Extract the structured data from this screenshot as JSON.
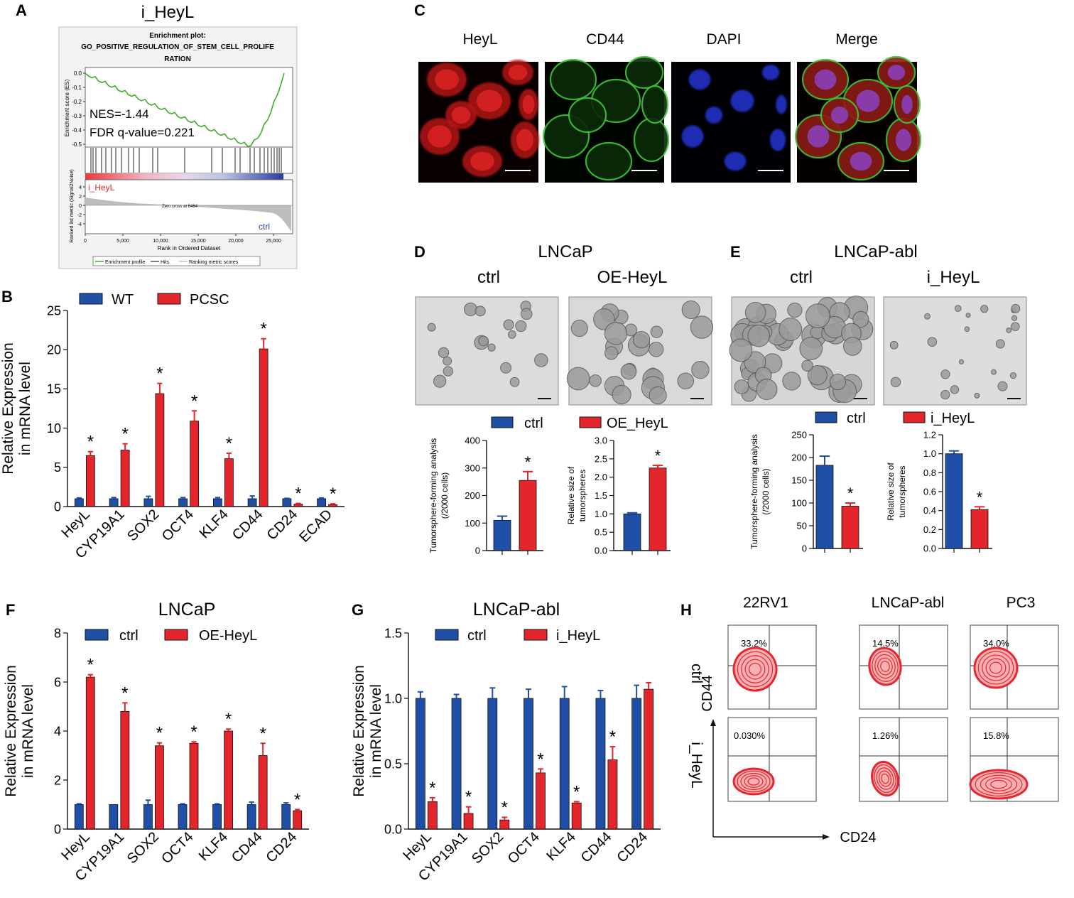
{
  "colors": {
    "blue": "#1f4fa6",
    "red": "#e3262b",
    "green": "#3fae2a",
    "flow": "#e8262d"
  },
  "panel_letters": [
    "A",
    "B",
    "C",
    "D",
    "E",
    "F",
    "G",
    "H"
  ],
  "panelA": {
    "title": "i_HeyL",
    "plot_title_lines": [
      "Enrichment plot:",
      "GO_POSITIVE_REGULATION_OF_STEM_CELL_PROLIFE",
      "RATION"
    ],
    "es_label": "Enrichment score (ES)",
    "es_ticks": [
      "0.0",
      "-0.1",
      "-0.2",
      "-0.3",
      "-0.4",
      "-0.5"
    ],
    "nes": "NES=-1.44",
    "fdr": "FDR q-value=0.221",
    "pos_label": "i_HeyL",
    "neg_label": "ctrl",
    "zero_cross": "Zero cross at 8484",
    "metric_label": "Ranked list metric (Signal2Noise)",
    "metric_ticks": [
      "4",
      "2",
      "0",
      "-2",
      "-4"
    ],
    "x_ticks": [
      "0",
      "5,000",
      "10,000",
      "15,000",
      "20,000",
      "25,000"
    ],
    "xlabel": "Rank in Ordered Dataset",
    "legend": [
      "Enrichment profile",
      "Hits",
      "Ranking metric scores"
    ]
  },
  "panelC": {
    "labels": [
      "HeyL",
      "CD44",
      "DAPI",
      "Merge"
    ]
  },
  "panelD": {
    "title": "LNCaP",
    "labels": [
      "ctrl",
      "OE-HeyL"
    ],
    "legend": [
      "ctrl",
      "OE_HeyL"
    ]
  },
  "panelE": {
    "title": "LNCaP-abl",
    "labels": [
      "ctrl",
      "i_HeyL"
    ],
    "legend": [
      "ctrl",
      "i_HeyL"
    ]
  },
  "panelH": {
    "columns": [
      "22RV1",
      "LNCaP-abl",
      "PC3"
    ],
    "rows": [
      "ctrl",
      "i_HeyL"
    ],
    "percents": [
      [
        "33.2%",
        "14.5%",
        "34.0%"
      ],
      [
        "0.030%",
        "1.26%",
        "15.8%"
      ]
    ],
    "xlabel": "CD24",
    "ylabel": "CD44"
  },
  "chart_data": [
    {
      "id": "B",
      "type": "bar",
      "categories": [
        "HeyL",
        "CYP19A1",
        "SOX2",
        "OCT4",
        "KLF4",
        "CD44",
        "CD24",
        "ECAD"
      ],
      "series": [
        {
          "name": "WT",
          "values": [
            1,
            1,
            1,
            1,
            1,
            1,
            1,
            1
          ],
          "errors": [
            0.1,
            0.15,
            0.3,
            0.15,
            0.15,
            0.35,
            0.05,
            0.1
          ]
        },
        {
          "name": "PCSC",
          "values": [
            6.5,
            7.2,
            14.4,
            10.9,
            6.1,
            20.1,
            0.3,
            0.25
          ],
          "errors": [
            0.5,
            0.8,
            1.3,
            1.3,
            0.7,
            1.3,
            0.1,
            0.1
          ]
        }
      ],
      "sig": [
        "*",
        "*",
        "*",
        "*",
        "*",
        "*",
        "*",
        "*"
      ],
      "ylabel": [
        "Relative Expression",
        "in mRNA level"
      ],
      "ylim": [
        0,
        25
      ],
      "yticks": [
        "0",
        "5",
        "10",
        "15",
        "20",
        "25"
      ]
    },
    {
      "id": "D1",
      "type": "bar",
      "categories": [
        "ctrl",
        "OE_HeyL"
      ],
      "values": [
        110,
        255
      ],
      "errors": [
        15,
        32
      ],
      "sig": "*",
      "ylabel": [
        "Tumorsphere-forming analysis",
        "(/2000 cells)"
      ],
      "ylim": [
        0,
        400
      ],
      "yticks": [
        "0",
        "100",
        "200",
        "300",
        "400"
      ]
    },
    {
      "id": "D2",
      "type": "bar",
      "categories": [
        "ctrl",
        "OE_HeyL"
      ],
      "values": [
        1.0,
        2.25
      ],
      "errors": [
        0.03,
        0.07
      ],
      "sig": "*",
      "ylabel": [
        "Relative size of",
        "tumorspheres"
      ],
      "ylim": [
        0,
        3.0
      ],
      "yticks": [
        "0.0",
        "0.5",
        "1.0",
        "1.5",
        "2.0",
        "2.5",
        "3.0"
      ]
    },
    {
      "id": "E1",
      "type": "bar",
      "categories": [
        "ctrl",
        "i_HeyL"
      ],
      "values": [
        183,
        93
      ],
      "errors": [
        20,
        7
      ],
      "sig": "*",
      "ylabel": [
        "Tumorsphere-forming analysis",
        "(/2000 cells)"
      ],
      "ylim": [
        0,
        250
      ],
      "yticks": [
        "0",
        "50",
        "100",
        "150",
        "200",
        "250"
      ]
    },
    {
      "id": "E2",
      "type": "bar",
      "categories": [
        "ctrl",
        "i_HeyL"
      ],
      "values": [
        1.0,
        0.41
      ],
      "errors": [
        0.03,
        0.03
      ],
      "sig": "*",
      "ylabel": [
        "Relative size of",
        "tumorspheres"
      ],
      "ylim": [
        0,
        1.2
      ],
      "yticks": [
        "0.0",
        "0.2",
        "0.4",
        "0.6",
        "0.8",
        "1.0",
        "1.2"
      ]
    },
    {
      "id": "F",
      "type": "bar",
      "title": "LNCaP",
      "categories": [
        "HeyL",
        "CYP19A1",
        "SOX2",
        "OCT4",
        "KLF4",
        "CD44",
        "CD24"
      ],
      "series": [
        {
          "name": "ctrl",
          "values": [
            1,
            1,
            1,
            1,
            1,
            1,
            1
          ],
          "errors": [
            0.03,
            0,
            0.18,
            0.03,
            0.03,
            0.1,
            0.07
          ]
        },
        {
          "name": "OE-HeyL",
          "values": [
            6.2,
            4.8,
            3.4,
            3.5,
            4.0,
            3.0,
            0.75
          ],
          "errors": [
            0.1,
            0.35,
            0.12,
            0.06,
            0.08,
            0.5,
            0.05
          ]
        }
      ],
      "sig": [
        "*",
        "*",
        "*",
        "*",
        "*",
        "*",
        "*"
      ],
      "ylabel": [
        "Relative Expression",
        "in mRNA level"
      ],
      "ylim": [
        0,
        8
      ],
      "yticks": [
        "0",
        "2",
        "4",
        "6",
        "8"
      ]
    },
    {
      "id": "G",
      "type": "bar",
      "title": "LNCaP-abl",
      "categories": [
        "HeyL",
        "CYP19A1",
        "SOX2",
        "OCT4",
        "KLF4",
        "CD44",
        "CD24"
      ],
      "series": [
        {
          "name": "ctrl",
          "values": [
            1,
            1,
            1,
            1,
            1,
            1,
            1
          ],
          "errors": [
            0.05,
            0.03,
            0.08,
            0.07,
            0.09,
            0.06,
            0.1
          ]
        },
        {
          "name": "i_HeyL",
          "values": [
            0.21,
            0.12,
            0.07,
            0.43,
            0.2,
            0.53,
            1.07
          ],
          "errors": [
            0.03,
            0.05,
            0.02,
            0.03,
            0.01,
            0.1,
            0.05
          ]
        }
      ],
      "sig": [
        "*",
        "*",
        "*",
        "*",
        "*",
        "*",
        ""
      ],
      "ylabel": [
        "Relative Expression",
        "in mRNA level"
      ],
      "ylim": [
        0,
        1.5
      ],
      "yticks": [
        "0.0",
        "0.5",
        "1.0",
        "1.5"
      ]
    }
  ]
}
